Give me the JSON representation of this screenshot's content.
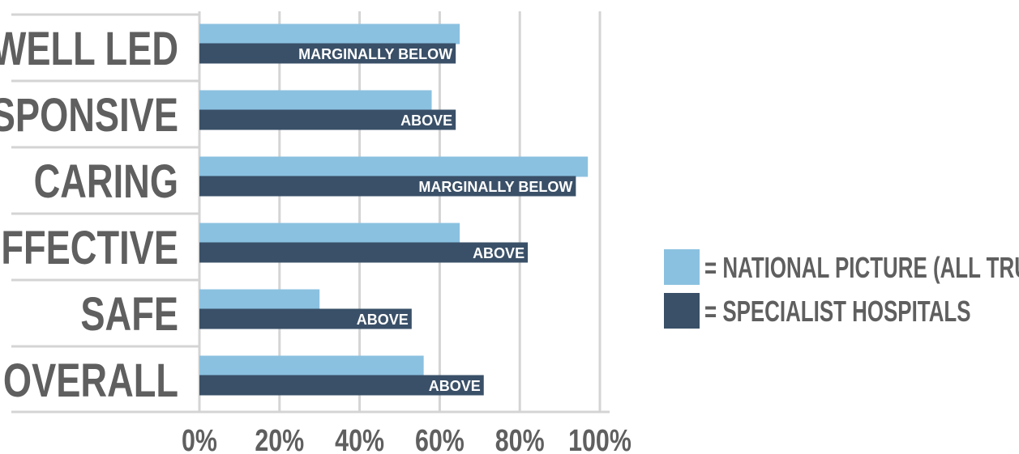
{
  "chart_data": {
    "type": "bar",
    "orientation": "horizontal",
    "categories": [
      "WELL LED",
      "RESPONSIVE",
      "CARING",
      "EFFECTIVE",
      "SAFE",
      "OVERALL"
    ],
    "series": [
      {
        "name": "= NATIONAL PICTURE (ALL TRUSTS)",
        "color": "#8bc1e0",
        "values": [
          65,
          58,
          97,
          65,
          30,
          56
        ]
      },
      {
        "name": "= SPECIALIST HOSPITALS",
        "color": "#3a5068",
        "values": [
          64,
          64,
          94,
          82,
          53,
          71
        ],
        "data_labels": [
          "MARGINALLY BELOW",
          "ABOVE",
          "MARGINALLY BELOW",
          "ABOVE",
          "ABOVE",
          "ABOVE"
        ]
      }
    ],
    "x_ticks": [
      "0%",
      "20%",
      "40%",
      "60%",
      "80%",
      "100%"
    ],
    "xlim": [
      0,
      100
    ],
    "grid": true,
    "legend_position": "right",
    "title": "",
    "xlabel": "",
    "ylabel": ""
  }
}
